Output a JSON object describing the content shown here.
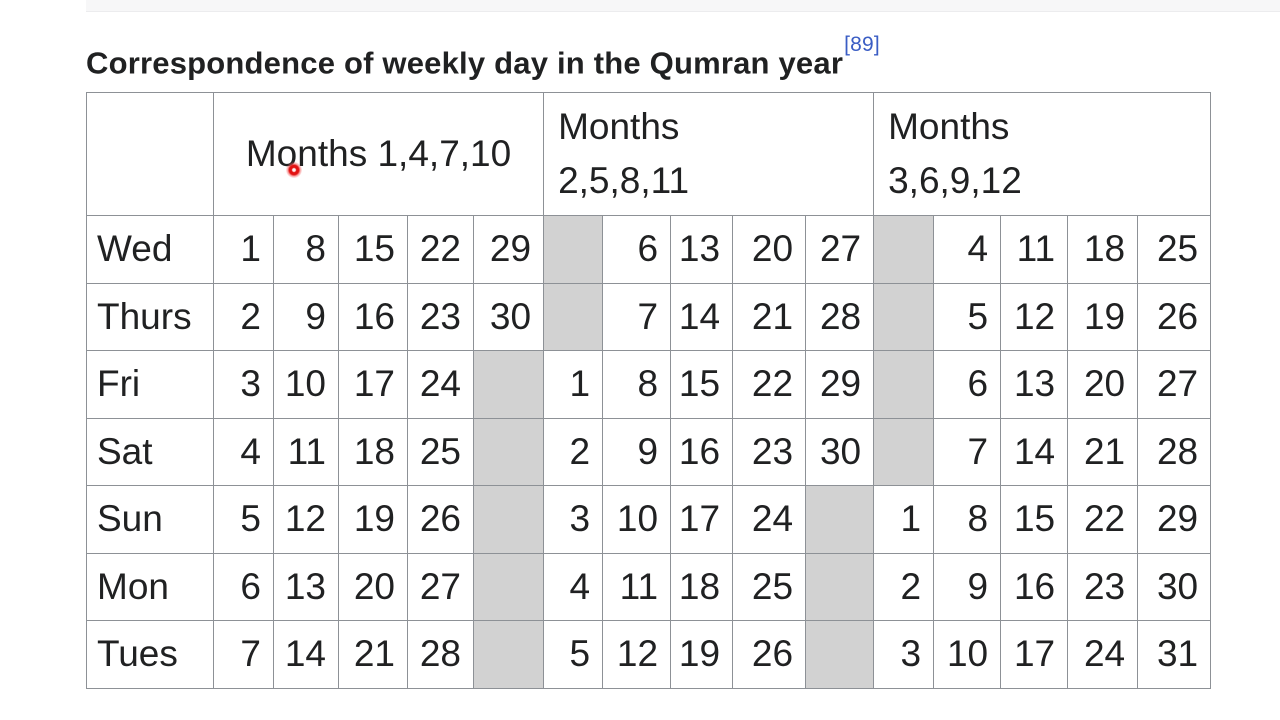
{
  "heading": {
    "title": "Correspondence of weekly day in the Qumran year",
    "reference_label": "[89]"
  },
  "table": {
    "corner_label": "",
    "column_groups": [
      {
        "label": "Months 1,4,7,10"
      },
      {
        "label": "Months 2,5,8,11"
      },
      {
        "label": "Months 3,6,9,12"
      }
    ],
    "rows": [
      {
        "day": "Wed",
        "cells": [
          1,
          8,
          15,
          22,
          29,
          null,
          6,
          13,
          20,
          27,
          null,
          4,
          11,
          18,
          25
        ]
      },
      {
        "day": "Thurs",
        "cells": [
          2,
          9,
          16,
          23,
          30,
          null,
          7,
          14,
          21,
          28,
          null,
          5,
          12,
          19,
          26
        ]
      },
      {
        "day": "Fri",
        "cells": [
          3,
          10,
          17,
          24,
          null,
          1,
          8,
          15,
          22,
          29,
          null,
          6,
          13,
          20,
          27
        ]
      },
      {
        "day": "Sat",
        "cells": [
          4,
          11,
          18,
          25,
          null,
          2,
          9,
          16,
          23,
          30,
          null,
          7,
          14,
          21,
          28
        ]
      },
      {
        "day": "Sun",
        "cells": [
          5,
          12,
          19,
          26,
          null,
          3,
          10,
          17,
          24,
          null,
          1,
          8,
          15,
          22,
          29
        ]
      },
      {
        "day": "Mon",
        "cells": [
          6,
          13,
          20,
          27,
          null,
          4,
          11,
          18,
          25,
          null,
          2,
          9,
          16,
          23,
          30
        ]
      },
      {
        "day": "Tues",
        "cells": [
          7,
          14,
          21,
          28,
          null,
          5,
          12,
          19,
          26,
          null,
          3,
          10,
          17,
          24,
          31
        ]
      }
    ]
  },
  "theme": {
    "text": "#202122",
    "link_blue": "#3a5dc4",
    "shaded_cell": "#d2d2d2",
    "table_border": "#8d9196",
    "top_strip": "#f7f7f8"
  }
}
